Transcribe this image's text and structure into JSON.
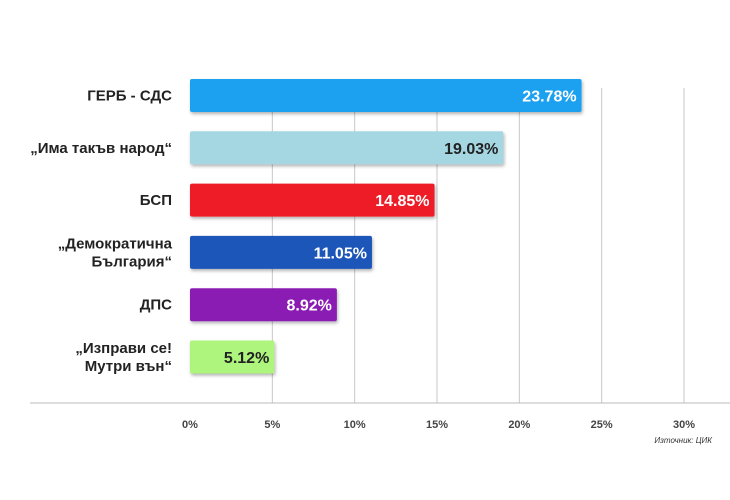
{
  "chart_data": {
    "type": "bar",
    "orientation": "horizontal",
    "categories": [
      [
        "ГЕРБ - СДС"
      ],
      [
        "„Има такъв народ“"
      ],
      [
        "БСП"
      ],
      [
        "„Демократична",
        "България“"
      ],
      [
        "ДПС"
      ],
      [
        "„Изправи се!",
        "Мутри вън“"
      ]
    ],
    "values": [
      23.78,
      19.03,
      14.85,
      11.05,
      8.92,
      5.12
    ],
    "value_labels": [
      "23.78%",
      "19.03%",
      "14.85%",
      "11.05%",
      "8.92%",
      "5.12%"
    ],
    "colors": [
      "#1aa0f0",
      "#a5d7e2",
      "#ee1c25",
      "#1b57b8",
      "#8a1fb3",
      "#aef57e"
    ],
    "label_colors": [
      "#ffffff",
      "#222222",
      "#ffffff",
      "#ffffff",
      "#ffffff",
      "#222222"
    ],
    "xlim": [
      0,
      30
    ],
    "x_ticks": [
      0,
      5,
      10,
      15,
      20,
      25,
      30
    ],
    "x_tick_labels": [
      "0%",
      "5%",
      "10%",
      "15%",
      "20%",
      "25%",
      "30%"
    ],
    "grid": true,
    "source": "Източник: ЦИК"
  }
}
